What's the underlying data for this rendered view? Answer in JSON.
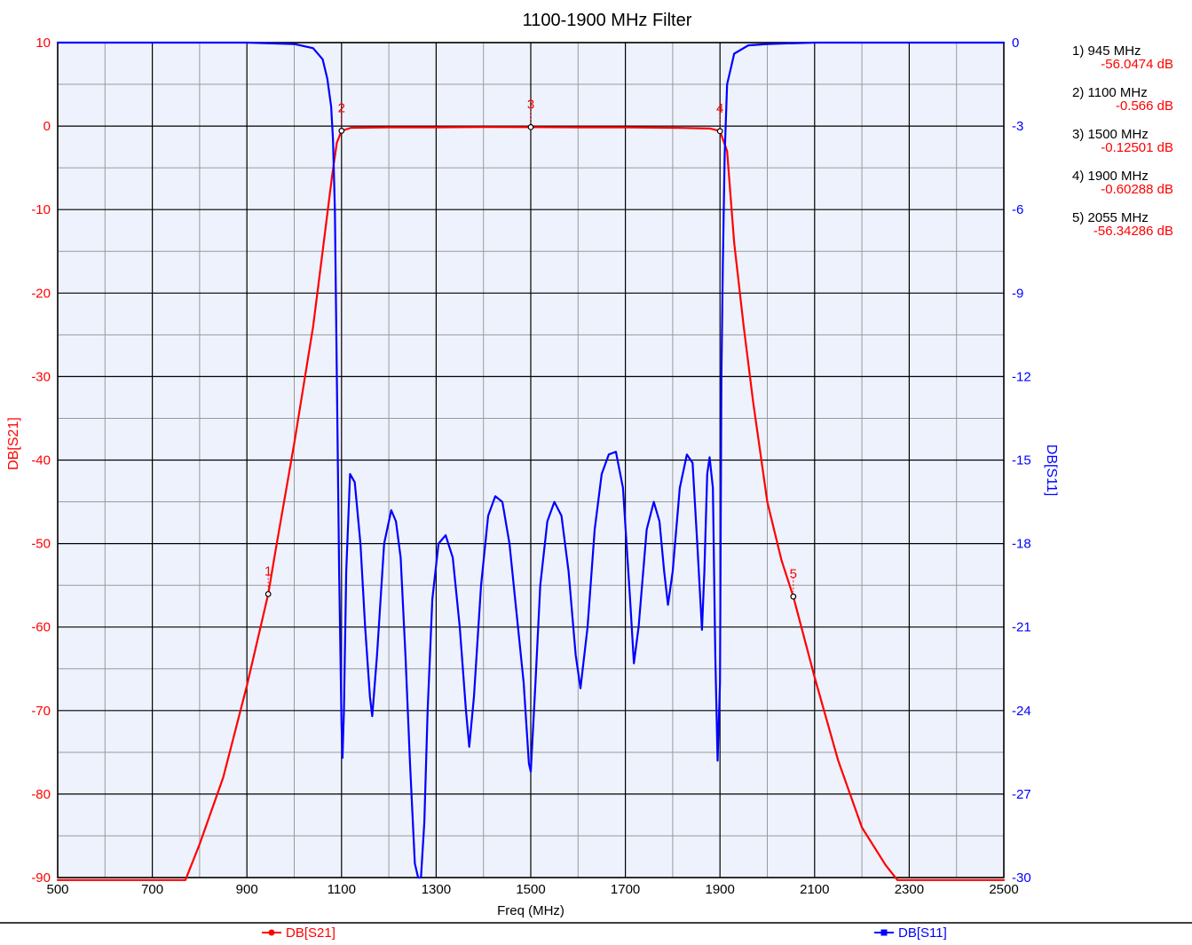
{
  "chart_data": {
    "type": "line",
    "title": "1100-1900 MHz Filter",
    "xlabel": "Freq (MHz)",
    "ylabel_left": "DB[S21]",
    "ylabel_right": "DB[S11]",
    "xlim": [
      500,
      2500
    ],
    "ylim_left": [
      -90,
      10
    ],
    "ylim_right": [
      -30,
      0
    ],
    "x_ticks": [
      500,
      700,
      900,
      1100,
      1300,
      1500,
      1700,
      1900,
      2100,
      2300,
      2500
    ],
    "y_ticks_left": [
      10,
      0,
      -10,
      -20,
      -30,
      -40,
      -50,
      -60,
      -70,
      -80,
      -90
    ],
    "y_ticks_right": [
      0,
      -3,
      -6,
      -9,
      -12,
      -15,
      -18,
      -21,
      -24,
      -27,
      -30
    ],
    "grid": true,
    "colors": {
      "s21": "#ff0000",
      "s11": "#0000ff",
      "plot_bg": "#eef2fc"
    },
    "series": [
      {
        "name": "DB[S21]",
        "axis": "left",
        "color": "#ff0000",
        "x": [
          500,
          770,
          800,
          850,
          900,
          945,
          960,
          1000,
          1040,
          1060,
          1080,
          1090,
          1100,
          1120,
          1200,
          1300,
          1400,
          1500,
          1600,
          1700,
          1800,
          1880,
          1900,
          1915,
          1930,
          1950,
          1970,
          2000,
          2030,
          2055,
          2100,
          2150,
          2200,
          2250,
          2275,
          2500
        ],
        "y": [
          -90.3,
          -90.3,
          -86,
          -78,
          -67,
          -56.05,
          -51,
          -38,
          -24,
          -15,
          -6,
          -2,
          -0.57,
          -0.2,
          -0.15,
          -0.15,
          -0.12,
          -0.13,
          -0.15,
          -0.15,
          -0.2,
          -0.3,
          -0.6,
          -3,
          -14,
          -24,
          -33,
          -45,
          -52,
          -56.34,
          -66,
          -76,
          -84,
          -88.5,
          -90.3,
          -90.3
        ]
      },
      {
        "name": "DB[S11]",
        "axis": "right",
        "color": "#0000ff",
        "x": [
          500,
          900,
          1000,
          1040,
          1060,
          1070,
          1078,
          1082,
          1086,
          1090,
          1095,
          1100,
          1102,
          1105,
          1110,
          1118,
          1128,
          1140,
          1150,
          1160,
          1165,
          1175,
          1190,
          1205,
          1215,
          1225,
          1235,
          1245,
          1255,
          1262,
          1268,
          1275,
          1282,
          1292,
          1305,
          1320,
          1335,
          1350,
          1363,
          1370,
          1380,
          1395,
          1410,
          1425,
          1440,
          1455,
          1470,
          1485,
          1496,
          1500,
          1510,
          1520,
          1535,
          1550,
          1565,
          1580,
          1595,
          1605,
          1620,
          1635,
          1650,
          1665,
          1680,
          1695,
          1710,
          1718,
          1728,
          1745,
          1760,
          1772,
          1782,
          1790,
          1800,
          1815,
          1830,
          1842,
          1852,
          1862,
          1867,
          1873,
          1878,
          1885,
          1890,
          1895,
          1900,
          1903,
          1906,
          1910,
          1915,
          1930,
          1960,
          2000,
          2100,
          2500
        ],
        "y": [
          0,
          0,
          -0.05,
          -0.2,
          -0.6,
          -1.3,
          -2.3,
          -3.5,
          -6,
          -12,
          -19,
          -24.5,
          -25.7,
          -24,
          -19,
          -15.5,
          -15.8,
          -18,
          -21,
          -23.5,
          -24.2,
          -22,
          -18,
          -16.8,
          -17.2,
          -18.5,
          -22,
          -26,
          -29.5,
          -30,
          -30,
          -28,
          -24,
          -20,
          -18,
          -17.7,
          -18.5,
          -21,
          -24,
          -25.3,
          -23.5,
          -19.5,
          -17,
          -16.3,
          -16.5,
          -18,
          -20.5,
          -23,
          -25.9,
          -26.2,
          -23,
          -19.5,
          -17.2,
          -16.5,
          -17,
          -19,
          -22,
          -23.2,
          -21,
          -17.5,
          -15.5,
          -14.8,
          -14.7,
          -16,
          -20,
          -22.3,
          -21,
          -17.5,
          -16.5,
          -17.2,
          -19,
          -20.2,
          -19,
          -16,
          -14.8,
          -15.1,
          -18,
          -21.1,
          -19,
          -15.5,
          -14.9,
          -16,
          -22,
          -25.8,
          -23,
          -12,
          -8,
          -4,
          -1.5,
          -0.4,
          -0.1,
          -0.05,
          0,
          0
        ]
      }
    ],
    "markers": [
      {
        "id": "1",
        "freq": 945,
        "value": -56.0474,
        "label": "1) 945 MHz",
        "value_label": "-56.0474 dB"
      },
      {
        "id": "2",
        "freq": 1100,
        "value": -0.566,
        "label": "2) 1100 MHz",
        "value_label": "-0.566 dB"
      },
      {
        "id": "3",
        "freq": 1500,
        "value": -0.12501,
        "label": "3) 1500 MHz",
        "value_label": "-0.12501 dB"
      },
      {
        "id": "4",
        "freq": 1900,
        "value": -0.60288,
        "label": "4) 1900 MHz",
        "value_label": "-0.60288 dB"
      },
      {
        "id": "5",
        "freq": 2055,
        "value": -56.34286,
        "label": "5) 2055 MHz",
        "value_label": "-56.34286 dB"
      }
    ]
  }
}
